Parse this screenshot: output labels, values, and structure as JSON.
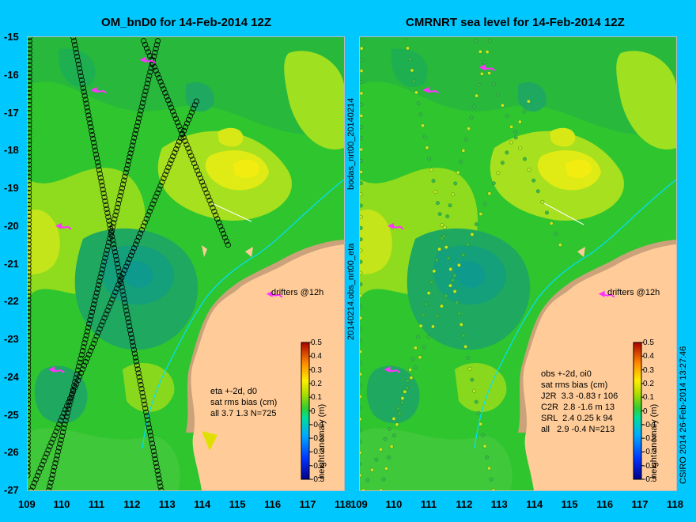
{
  "chart_data": [
    {
      "type": "heatmap",
      "title": "OM_bnD0 for 14-Feb-2014 12Z",
      "x_ticks": [
        "109",
        "110",
        "111",
        "112",
        "113",
        "114",
        "115",
        "116",
        "117",
        "118"
      ],
      "y_ticks": [
        "-15",
        "-16",
        "-17",
        "-18",
        "-19",
        "-20",
        "-21",
        "-22",
        "-23",
        "-24",
        "-25",
        "-26",
        "-27"
      ],
      "xlim": [
        109,
        118
      ],
      "ylim": [
        -27,
        -15
      ],
      "colorbar": {
        "label": "height anomaly (m)",
        "ticks": [
          "0.5",
          "0.4",
          "0.3",
          "0.2",
          "0.1",
          "0",
          "-0.1",
          "-0.2",
          "-0.3",
          "-0.4",
          "-0.5"
        ],
        "range": [
          -0.5,
          0.5
        ]
      },
      "annotations": {
        "drifters": "drifters @12h",
        "stats": [
          "eta +-2d, d0",
          "sat rms bias (cm)",
          "all 3.7 1.3 N=725"
        ]
      },
      "satellite_tracks": [
        [
          [
            109.05,
            -15.0
          ],
          [
            109.0,
            -26.6
          ]
        ],
        [
          [
            109.6,
            -27.0
          ],
          [
            112.7,
            -15.1
          ]
        ],
        [
          [
            110.3,
            -15.0
          ],
          [
            112.8,
            -27.0
          ]
        ],
        [
          [
            109.1,
            -27.0
          ],
          [
            113.8,
            -16.7
          ]
        ],
        [
          [
            112.3,
            -15.1
          ],
          [
            114.7,
            -20.5
          ]
        ]
      ],
      "drifter_positions": [
        [
          112.3,
          -15.6
        ],
        [
          110.9,
          -16.4
        ],
        [
          109.9,
          -20.0
        ],
        [
          109.7,
          -23.8
        ],
        [
          115.9,
          -21.8
        ]
      ]
    },
    {
      "type": "heatmap",
      "title": "CMRNRT sea level  for 14-Feb-2014 12Z",
      "x_ticks": [
        "109",
        "110",
        "111",
        "112",
        "113",
        "114",
        "115",
        "116",
        "117",
        "118"
      ],
      "xlim": [
        109,
        118
      ],
      "ylim": [
        -27,
        -15
      ],
      "colorbar": {
        "label": "height anomaly (m)",
        "ticks": [
          "0.5",
          "0.4",
          "0.3",
          "0.2",
          "0.1",
          "0",
          "-0.1",
          "-0.2",
          "-0.3",
          "-0.4",
          "-0.5"
        ],
        "range": [
          -0.5,
          0.5
        ]
      },
      "annotations": {
        "drifters": "drifters @12h",
        "stats": [
          "obs +-2d, oi0",
          "sat rms bias (cm)",
          "J2R  3.3 -0.83 r 106",
          "C2R  2.8 -1.6 m 13",
          "SRL  2.4 0.25 k 94",
          "all   2.9 -0.4 N=213"
        ]
      },
      "drifter_positions": [
        [
          112.5,
          -15.8
        ],
        [
          110.9,
          -16.4
        ],
        [
          109.9,
          -20.0
        ],
        [
          109.8,
          -23.8
        ],
        [
          115.9,
          -21.8
        ]
      ]
    }
  ],
  "side_labels": {
    "between_top": "bodas_nrt00_20140214",
    "between_bottom": "20140214.obs_nrt00_eta",
    "right": "CSIRO 2014   26-Feb-2014 13:27:46"
  },
  "colors": {
    "background": "#00c8ff",
    "land": "#ffcc99",
    "coast_shelf": "#cca27a",
    "drifter": "#ff33ff",
    "isobath": "#00e0ff"
  }
}
